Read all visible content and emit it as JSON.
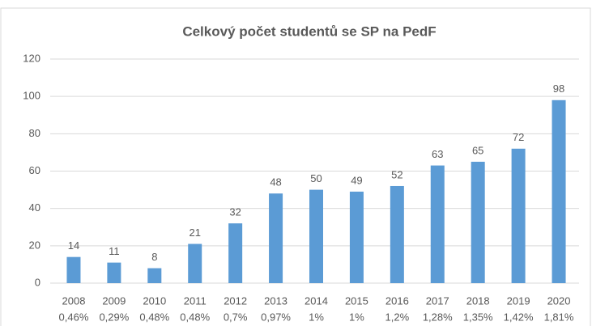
{
  "chart_data": {
    "type": "bar",
    "title": "Celkový počet studentů se SP na PedF",
    "categories": [
      "2008",
      "2009",
      "2010",
      "2011",
      "2012",
      "2013",
      "2014",
      "2015",
      "2016",
      "2017",
      "2018",
      "2019",
      "2020"
    ],
    "shares": [
      "0,46%",
      "0,29%",
      "0,48%",
      "0,48%",
      "0,7%",
      "0,97%",
      "1%",
      "1%",
      "1,2%",
      "1,28%",
      "1,35%",
      "1,42%",
      "1,81%"
    ],
    "values": [
      14,
      11,
      8,
      21,
      32,
      48,
      50,
      49,
      52,
      63,
      65,
      72,
      98
    ],
    "color": "#5b9bd5",
    "ylim": [
      0,
      120
    ],
    "yticks": [
      0,
      20,
      40,
      60,
      80,
      100,
      120
    ],
    "grid": true
  }
}
